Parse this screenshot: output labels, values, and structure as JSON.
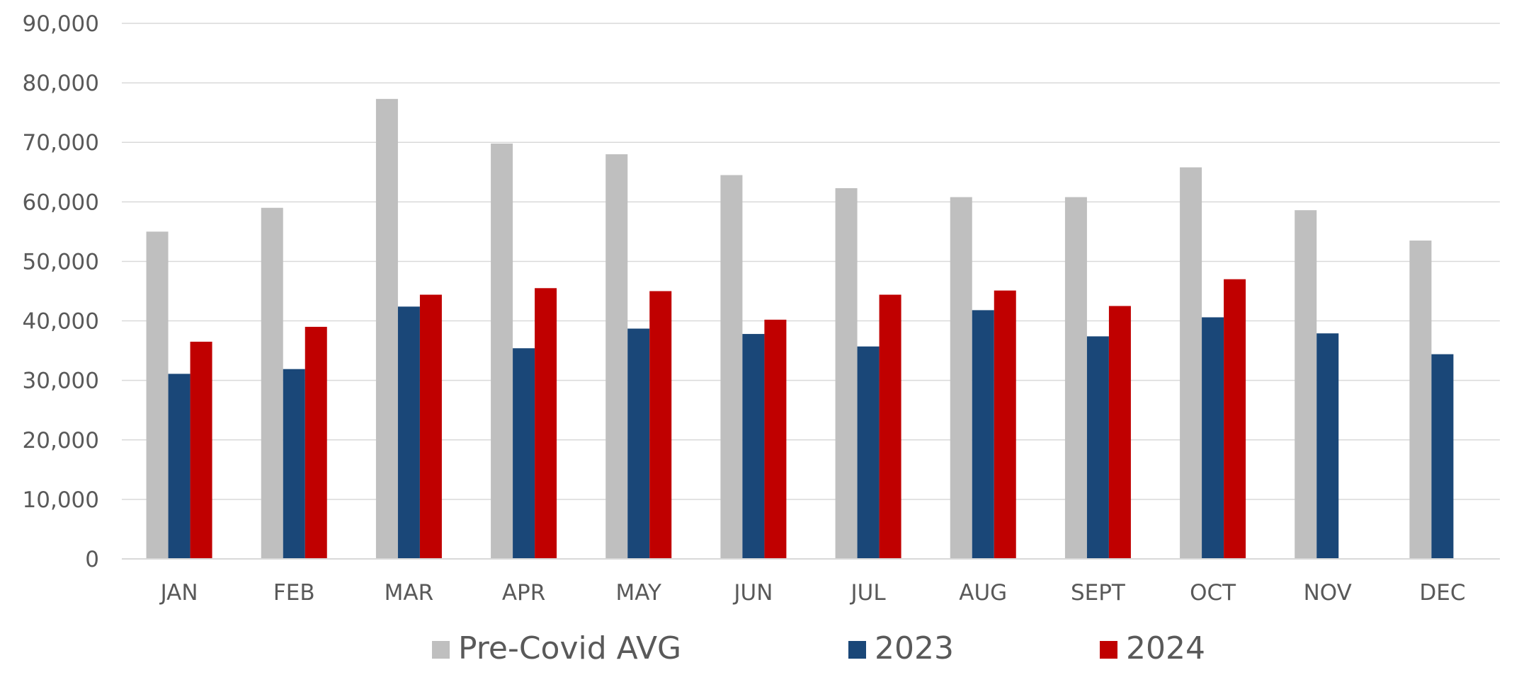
{
  "chart_data": {
    "type": "bar",
    "title": "",
    "xlabel": "",
    "ylabel": "",
    "ylim": [
      0,
      90000
    ],
    "y_ticks": [
      0,
      10000,
      20000,
      30000,
      40000,
      50000,
      60000,
      70000,
      80000,
      90000
    ],
    "y_tick_labels": [
      "0",
      "10,000",
      "20,000",
      "30,000",
      "40,000",
      "50,000",
      "60,000",
      "70,000",
      "80,000",
      "90,000"
    ],
    "grid": true,
    "legend_position": "bottom",
    "categories": [
      "JAN",
      "FEB",
      "MAR",
      "APR",
      "MAY",
      "JUN",
      "JUL",
      "AUG",
      "SEPT",
      "OCT",
      "NOV",
      "DEC"
    ],
    "series": [
      {
        "name": "Pre-Covid AVG",
        "color": "#bfbfbf",
        "values": [
          55000,
          59000,
          77300,
          69800,
          68000,
          64500,
          62300,
          60800,
          60800,
          65800,
          58600,
          53500
        ]
      },
      {
        "name": "2023",
        "color": "#1a4778",
        "values": [
          31100,
          31900,
          42400,
          35400,
          38700,
          37800,
          35700,
          41800,
          37400,
          40600,
          37900,
          34400
        ]
      },
      {
        "name": "2024",
        "color": "#c00000",
        "values": [
          36500,
          39000,
          44400,
          45500,
          45000,
          40200,
          44400,
          45100,
          42500,
          47000,
          null,
          null
        ]
      }
    ]
  }
}
